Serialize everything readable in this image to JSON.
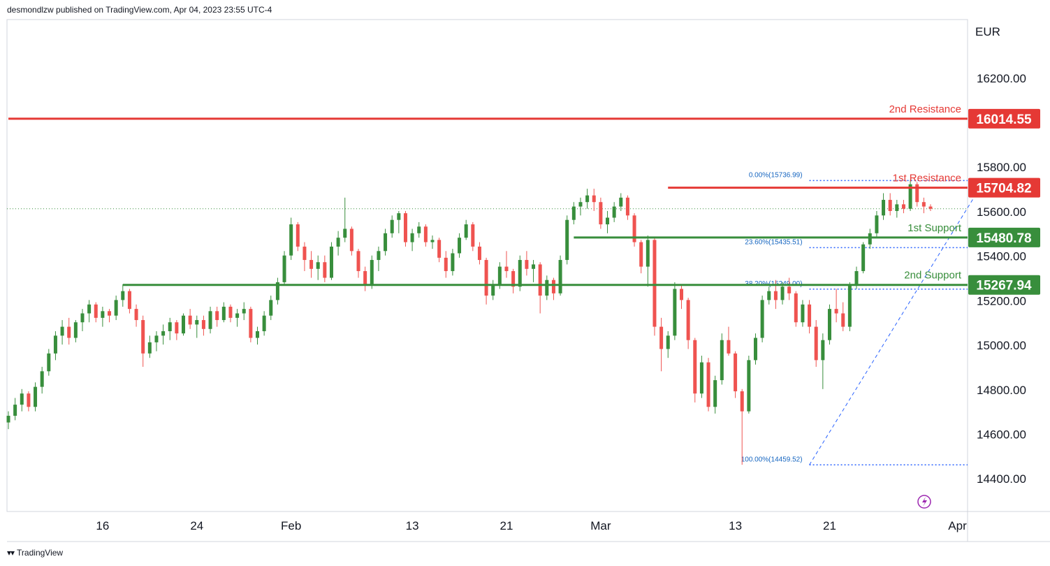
{
  "header": {
    "published": "desmondlzw published on TradingView.com, Apr 04, 2023 23:55 UTC-4"
  },
  "footer": {
    "brand": "TradingView",
    "logo_icon": "tradingview-logo-icon"
  },
  "colors": {
    "up": "#388e3c",
    "down": "#ef5350",
    "resistance": "#e53935",
    "support": "#388e3c",
    "fib": "#2962ff",
    "fib_text": "#1565c0",
    "grid": "#d1d4dc",
    "text": "#131722"
  },
  "icons": {
    "lightning": "lightning-icon"
  },
  "chart_data": {
    "type": "candlestick",
    "currency": "EUR",
    "ylim": [
      14250,
      16460
    ],
    "yticks": [
      "16200.00",
      "15800.00",
      "15600.00",
      "15400.00",
      "15200.00",
      "15000.00",
      "14800.00",
      "14600.00",
      "14400.00"
    ],
    "ytick_values": [
      16200,
      15800,
      15600,
      15400,
      15200,
      15000,
      14800,
      14600,
      14400
    ],
    "xticks": [
      {
        "label": "16",
        "i": 14
      },
      {
        "label": "24",
        "i": 28
      },
      {
        "label": "Feb",
        "i": 42
      },
      {
        "label": "13",
        "i": 60
      },
      {
        "label": "21",
        "i": 74
      },
      {
        "label": "Mar",
        "i": 88
      },
      {
        "label": "13",
        "i": 108
      },
      {
        "label": "21",
        "i": 122
      },
      {
        "label": "Apr",
        "i": 141
      }
    ],
    "last_price": 15610,
    "levels": [
      {
        "name": "2nd Resistance",
        "value": 16014.55,
        "label": "16014.55",
        "kind": "resistance",
        "start_i": 0
      },
      {
        "name": "1st Resistance",
        "value": 15704.82,
        "label": "15704.82",
        "kind": "resistance",
        "start_i": 98
      },
      {
        "name": "1st Support",
        "value": 15480.78,
        "label": "15480.78",
        "kind": "support",
        "start_i": 84
      },
      {
        "name": "2nd Support",
        "value": 15267.94,
        "label": "15267.94",
        "kind": "support",
        "start_i": 17
      }
    ],
    "fibonacci": {
      "start_i": 119,
      "end_i": 145,
      "levels": [
        {
          "label": "0.00%(15736.99)",
          "value": 15736.99
        },
        {
          "label": "23.60%(15435.51)",
          "value": 15435.51
        },
        {
          "label": "38.20%(15249.00)",
          "value": 15249.0
        },
        {
          "label": "100.00%(14459.52)",
          "value": 14459.52
        }
      ]
    },
    "trendline": {
      "from": [
        119,
        14459.52
      ],
      "to": [
        145,
        15736.99
      ]
    },
    "candles": [
      [
        14650,
        14700,
        14620,
        14680
      ],
      [
        14680,
        14760,
        14660,
        14730
      ],
      [
        14730,
        14800,
        14700,
        14780
      ],
      [
        14780,
        14790,
        14700,
        14720
      ],
      [
        14720,
        14830,
        14700,
        14810
      ],
      [
        14810,
        14900,
        14780,
        14880
      ],
      [
        14880,
        14980,
        14860,
        14960
      ],
      [
        14960,
        15060,
        14930,
        15040
      ],
      [
        15040,
        15110,
        15000,
        15080
      ],
      [
        15080,
        15120,
        15000,
        15030
      ],
      [
        15030,
        15110,
        15010,
        15100
      ],
      [
        15100,
        15160,
        15060,
        15140
      ],
      [
        15140,
        15200,
        15100,
        15180
      ],
      [
        15180,
        15190,
        15100,
        15120
      ],
      [
        15120,
        15170,
        15080,
        15150
      ],
      [
        15150,
        15160,
        15100,
        15130
      ],
      [
        15130,
        15220,
        15110,
        15200
      ],
      [
        15200,
        15270,
        15170,
        15240
      ],
      [
        15240,
        15250,
        15140,
        15160
      ],
      [
        15160,
        15180,
        15080,
        15110
      ],
      [
        15110,
        15130,
        14900,
        14960
      ],
      [
        14960,
        15040,
        14940,
        15010
      ],
      [
        15010,
        15060,
        14970,
        15040
      ],
      [
        15040,
        15090,
        15000,
        15060
      ],
      [
        15060,
        15120,
        15020,
        15100
      ],
      [
        15100,
        15110,
        15020,
        15050
      ],
      [
        15050,
        15140,
        15040,
        15130
      ],
      [
        15130,
        15160,
        15070,
        15090
      ],
      [
        15090,
        15130,
        15030,
        15110
      ],
      [
        15110,
        15130,
        15040,
        15070
      ],
      [
        15070,
        15170,
        15050,
        15150
      ],
      [
        15150,
        15170,
        15080,
        15110
      ],
      [
        15110,
        15190,
        15100,
        15170
      ],
      [
        15170,
        15180,
        15100,
        15120
      ],
      [
        15120,
        15160,
        15080,
        15140
      ],
      [
        15140,
        15190,
        15110,
        15160
      ],
      [
        15160,
        15170,
        15010,
        15030
      ],
      [
        15030,
        15080,
        15000,
        15060
      ],
      [
        15060,
        15150,
        15040,
        15130
      ],
      [
        15130,
        15220,
        15110,
        15200
      ],
      [
        15200,
        15300,
        15180,
        15280
      ],
      [
        15280,
        15420,
        15270,
        15400
      ],
      [
        15400,
        15570,
        15380,
        15540
      ],
      [
        15540,
        15550,
        15420,
        15440
      ],
      [
        15440,
        15460,
        15330,
        15380
      ],
      [
        15380,
        15420,
        15300,
        15340
      ],
      [
        15340,
        15400,
        15290,
        15370
      ],
      [
        15370,
        15400,
        15280,
        15300
      ],
      [
        15300,
        15460,
        15290,
        15440
      ],
      [
        15440,
        15510,
        15400,
        15480
      ],
      [
        15480,
        15660,
        15460,
        15520
      ],
      [
        15520,
        15530,
        15400,
        15420
      ],
      [
        15420,
        15430,
        15300,
        15330
      ],
      [
        15330,
        15350,
        15240,
        15270
      ],
      [
        15270,
        15400,
        15250,
        15380
      ],
      [
        15380,
        15440,
        15330,
        15420
      ],
      [
        15420,
        15520,
        15400,
        15500
      ],
      [
        15500,
        15580,
        15480,
        15560
      ],
      [
        15560,
        15600,
        15500,
        15590
      ],
      [
        15590,
        15600,
        15440,
        15460
      ],
      [
        15460,
        15520,
        15420,
        15500
      ],
      [
        15500,
        15550,
        15480,
        15530
      ],
      [
        15530,
        15540,
        15440,
        15460
      ],
      [
        15460,
        15490,
        15430,
        15470
      ],
      [
        15470,
        15480,
        15370,
        15390
      ],
      [
        15390,
        15420,
        15300,
        15330
      ],
      [
        15330,
        15430,
        15310,
        15410
      ],
      [
        15410,
        15500,
        15390,
        15480
      ],
      [
        15480,
        15560,
        15470,
        15540
      ],
      [
        15540,
        15550,
        15420,
        15440
      ],
      [
        15440,
        15460,
        15360,
        15380
      ],
      [
        15380,
        15390,
        15180,
        15220
      ],
      [
        15220,
        15290,
        15200,
        15270
      ],
      [
        15270,
        15370,
        15250,
        15350
      ],
      [
        15350,
        15420,
        15300,
        15330
      ],
      [
        15330,
        15340,
        15230,
        15260
      ],
      [
        15260,
        15400,
        15240,
        15380
      ],
      [
        15380,
        15420,
        15310,
        15340
      ],
      [
        15340,
        15380,
        15280,
        15360
      ],
      [
        15360,
        15370,
        15140,
        15220
      ],
      [
        15220,
        15310,
        15200,
        15290
      ],
      [
        15290,
        15300,
        15200,
        15230
      ],
      [
        15230,
        15400,
        15220,
        15380
      ],
      [
        15380,
        15580,
        15360,
        15560
      ],
      [
        15560,
        15640,
        15540,
        15620
      ],
      [
        15620,
        15660,
        15580,
        15640
      ],
      [
        15640,
        15700,
        15610,
        15670
      ],
      [
        15670,
        15700,
        15600,
        15640
      ],
      [
        15640,
        15660,
        15520,
        15540
      ],
      [
        15540,
        15600,
        15500,
        15570
      ],
      [
        15570,
        15640,
        15550,
        15620
      ],
      [
        15620,
        15680,
        15600,
        15660
      ],
      [
        15660,
        15670,
        15560,
        15580
      ],
      [
        15580,
        15590,
        15440,
        15460
      ],
      [
        15460,
        15470,
        15320,
        15350
      ],
      [
        15350,
        15490,
        15260,
        15470
      ],
      [
        15470,
        15480,
        15040,
        15080
      ],
      [
        15080,
        15120,
        14880,
        14980
      ],
      [
        14980,
        15060,
        14940,
        15040
      ],
      [
        15040,
        15280,
        15020,
        15250
      ],
      [
        15250,
        15270,
        15160,
        15200
      ],
      [
        15200,
        15210,
        14980,
        15020
      ],
      [
        15020,
        15030,
        14740,
        14780
      ],
      [
        14780,
        14950,
        14760,
        14920
      ],
      [
        14920,
        14940,
        14700,
        14720
      ],
      [
        14720,
        14860,
        14690,
        14840
      ],
      [
        14840,
        15050,
        14820,
        15020
      ],
      [
        15020,
        15080,
        14950,
        14960
      ],
      [
        14960,
        14970,
        14760,
        14790
      ],
      [
        14790,
        14800,
        14460,
        14700
      ],
      [
        14700,
        14950,
        14690,
        14930
      ],
      [
        14930,
        15050,
        14910,
        15030
      ],
      [
        15030,
        15220,
        15010,
        15200
      ],
      [
        15200,
        15260,
        15180,
        15240
      ],
      [
        15240,
        15290,
        15160,
        15200
      ],
      [
        15200,
        15280,
        15180,
        15260
      ],
      [
        15260,
        15300,
        15200,
        15230
      ],
      [
        15230,
        15240,
        15080,
        15100
      ],
      [
        15100,
        15200,
        15080,
        15180
      ],
      [
        15180,
        15200,
        15050,
        15080
      ],
      [
        15080,
        15110,
        14900,
        14930
      ],
      [
        14930,
        15050,
        14800,
        15020
      ],
      [
        15020,
        15180,
        15000,
        15160
      ],
      [
        15160,
        15250,
        15100,
        15140
      ],
      [
        15140,
        15190,
        15060,
        15080
      ],
      [
        15080,
        15280,
        15060,
        15270
      ],
      [
        15270,
        15350,
        15250,
        15330
      ],
      [
        15330,
        15460,
        15320,
        15450
      ],
      [
        15450,
        15520,
        15430,
        15500
      ],
      [
        15500,
        15600,
        15480,
        15580
      ],
      [
        15580,
        15680,
        15560,
        15650
      ],
      [
        15650,
        15680,
        15580,
        15600
      ],
      [
        15600,
        15650,
        15570,
        15630
      ],
      [
        15630,
        15650,
        15590,
        15610
      ],
      [
        15610,
        15740,
        15600,
        15720
      ],
      [
        15720,
        15730,
        15620,
        15640
      ],
      [
        15640,
        15660,
        15590,
        15620
      ],
      [
        15620,
        15630,
        15600,
        15610
      ]
    ]
  }
}
